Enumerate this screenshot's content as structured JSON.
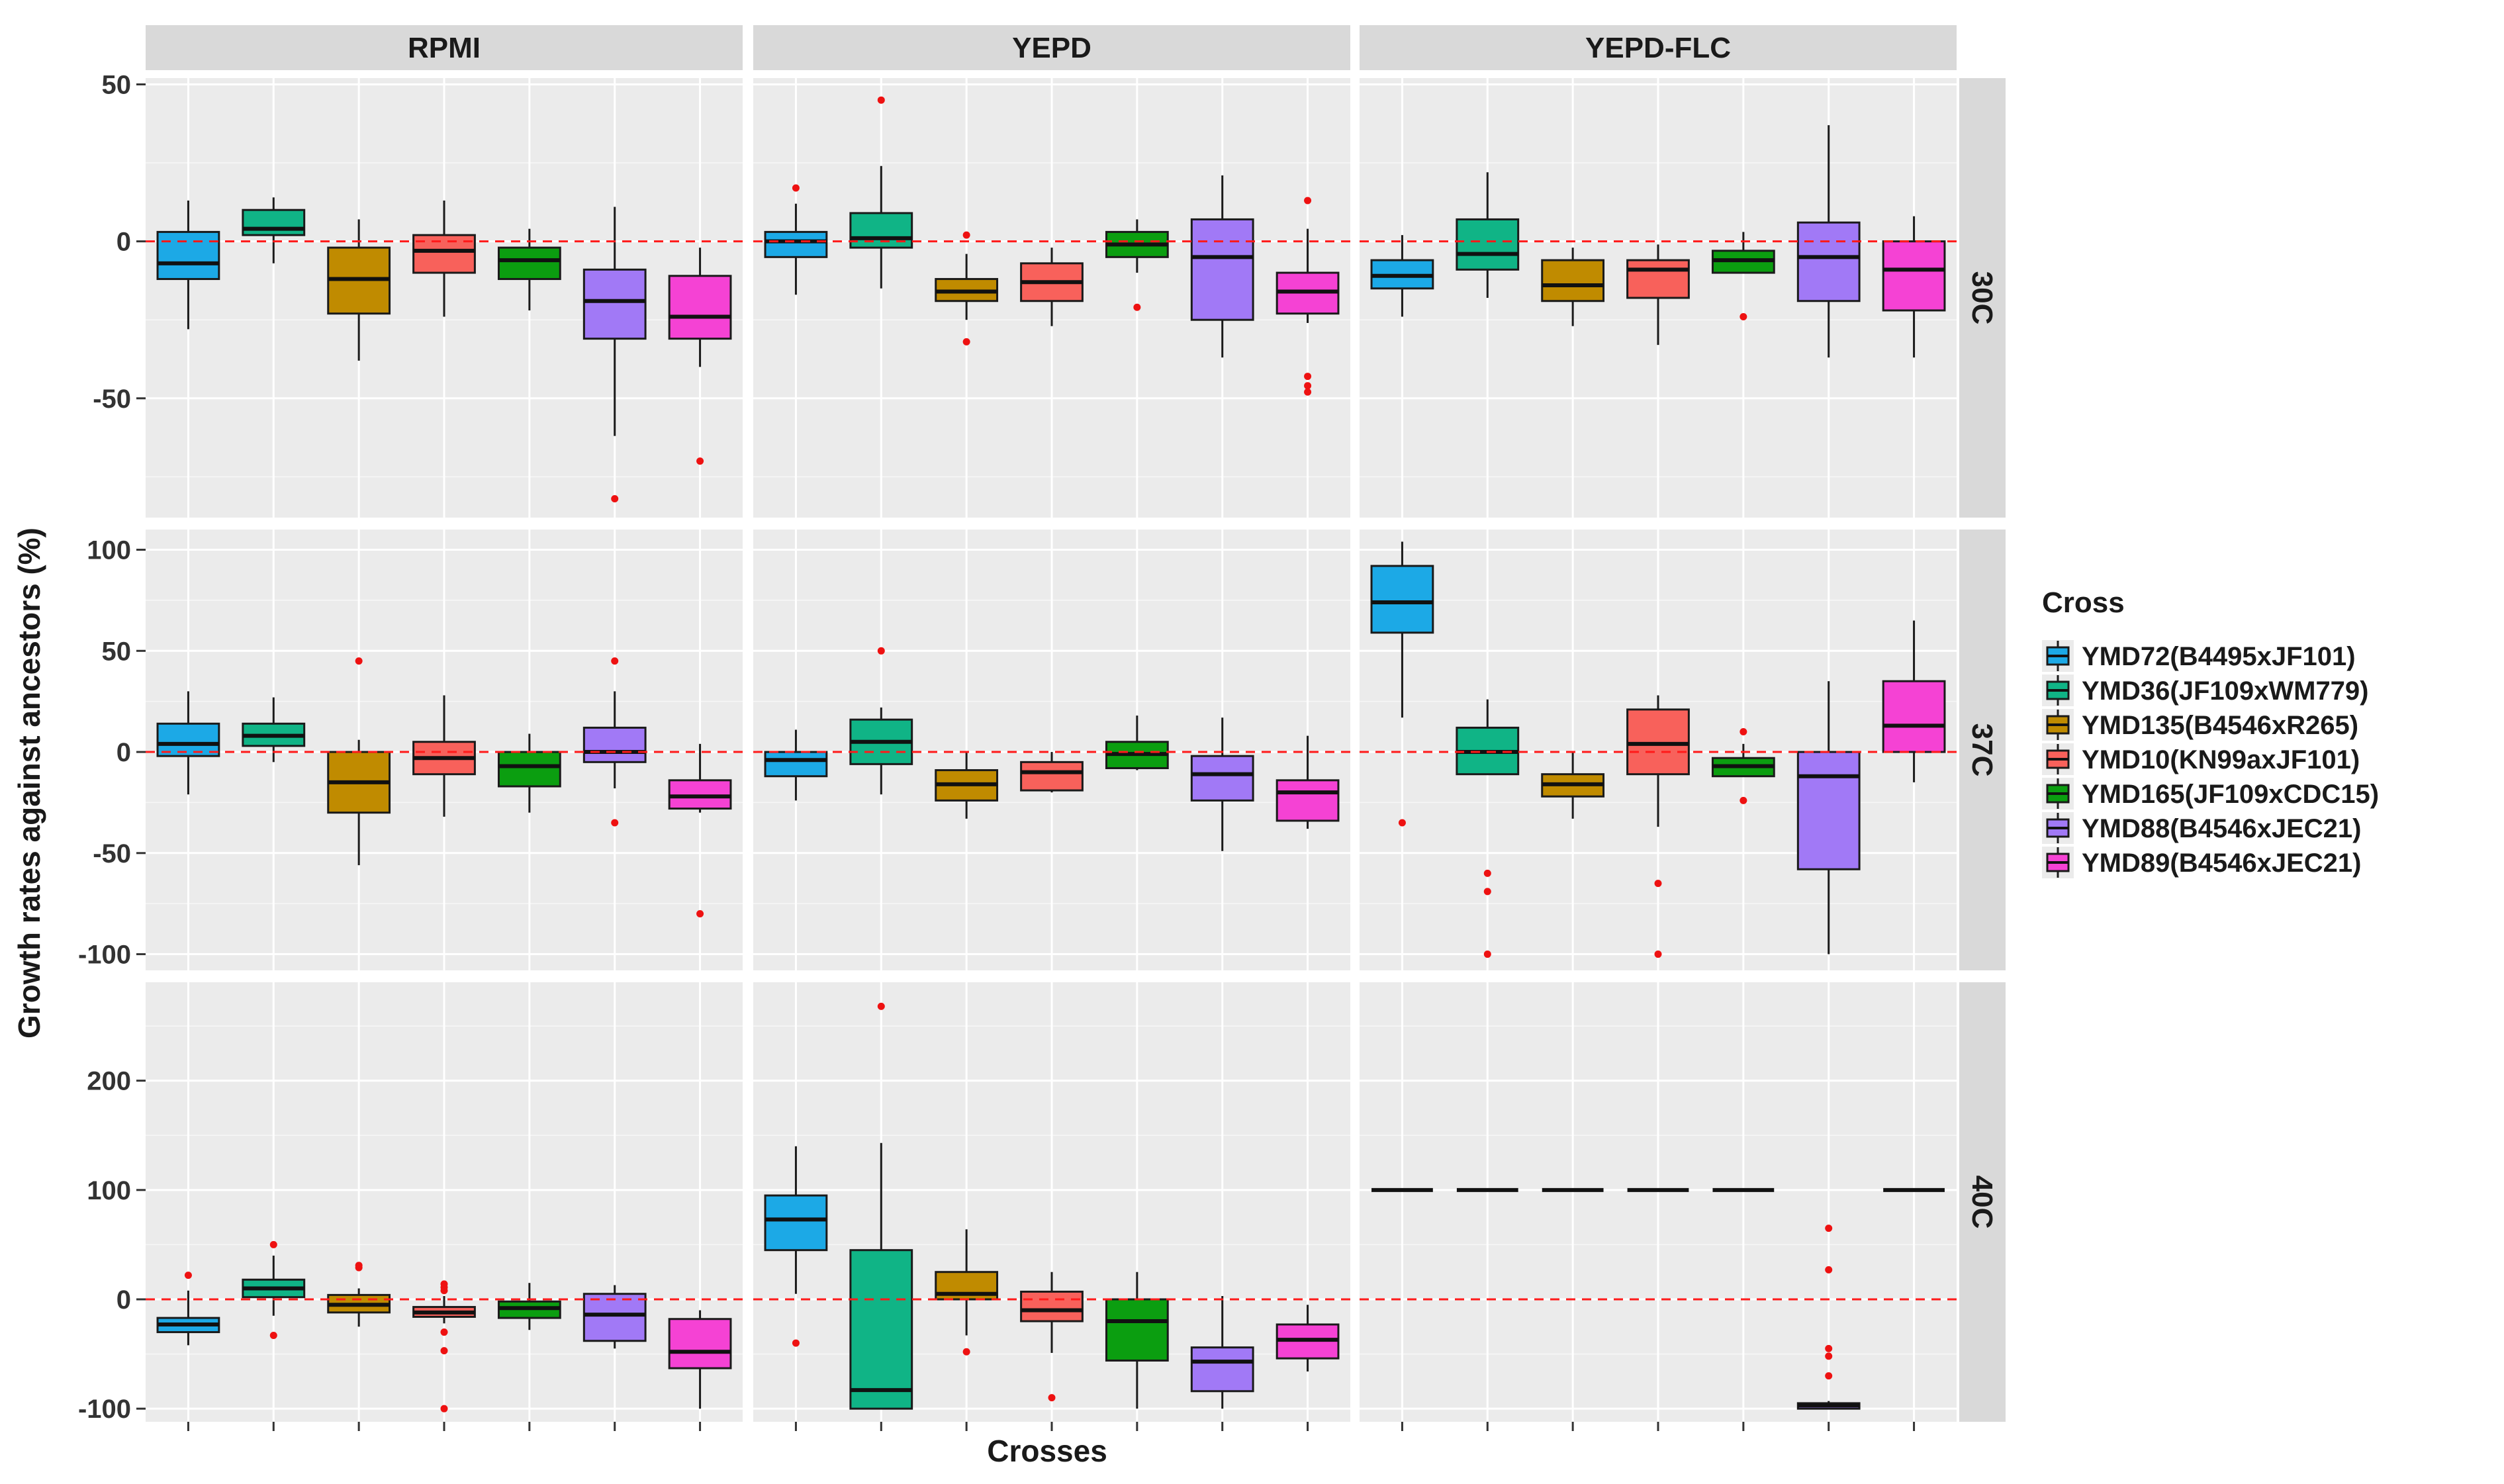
{
  "chart_data": {
    "type": "boxplot",
    "xlabel": "Crosses",
    "ylabel": "Growth rates against ancestors (%)",
    "columns": [
      "RPMI",
      "YEPD",
      "YEPD-FLC"
    ],
    "rows": [
      "30C",
      "37C",
      "40C"
    ],
    "reference_line": 0,
    "legend": {
      "title": "Cross",
      "position": "right",
      "entries": [
        {
          "label": "YMD72(B4495xJF101)",
          "color": "#1ca9e6"
        },
        {
          "label": "YMD36(JF109xWM779)",
          "color": "#10b486"
        },
        {
          "label": "YMD135(B4546xR265)",
          "color": "#c08b00"
        },
        {
          "label": "YMD10(KN99axJF101)",
          "color": "#f8615b"
        },
        {
          "label": "YMD165(JF109xCDC15)",
          "color": "#0b9e10"
        },
        {
          "label": "YMD88(B4546xJEC21)",
          "color": "#a179f6"
        },
        {
          "label": "YMD89(B4546xJEC21)",
          "color": "#f542d4"
        }
      ]
    },
    "row_axes": [
      {
        "row": "30C",
        "ylim": [
          -88,
          52
        ],
        "ticks": [
          50,
          0,
          -50
        ],
        "tick_labels": [
          "50",
          "0",
          "-50"
        ]
      },
      {
        "row": "37C",
        "ylim": [
          -108,
          110
        ],
        "ticks": [
          100,
          50,
          0,
          -50,
          -100
        ],
        "tick_labels": [
          "100",
          "50",
          "0",
          "-50",
          "-100"
        ]
      },
      {
        "row": "40C",
        "ylim": [
          -112,
          290
        ],
        "ticks": [
          200,
          100,
          0,
          -100
        ],
        "tick_labels": [
          "200",
          "100",
          "0",
          "-100"
        ]
      }
    ],
    "panels": [
      {
        "row": "30C",
        "col": "RPMI",
        "boxes": [
          [
            -28,
            -12,
            -7,
            3,
            13,
            []
          ],
          [
            -7,
            2,
            4,
            10,
            14,
            []
          ],
          [
            -38,
            -23,
            -12,
            -2,
            7,
            []
          ],
          [
            -24,
            -10,
            -3,
            2,
            13,
            []
          ],
          [
            -22,
            -12,
            -6,
            -2,
            4,
            []
          ],
          [
            -62,
            -31,
            -19,
            -9,
            11,
            [
              -82
            ]
          ],
          [
            -40,
            -31,
            -24,
            -11,
            -2,
            [
              -70
            ]
          ]
        ]
      },
      {
        "row": "30C",
        "col": "YEPD",
        "boxes": [
          [
            -17,
            -5,
            0,
            3,
            12,
            [
              17
            ]
          ],
          [
            -15,
            -2,
            1,
            9,
            24,
            [
              45
            ]
          ],
          [
            -25,
            -19,
            -16,
            -12,
            -4,
            [
              2,
              -32
            ]
          ],
          [
            -27,
            -19,
            -13,
            -7,
            -2,
            []
          ],
          [
            -10,
            -5,
            -1,
            3,
            7,
            [
              -21
            ]
          ],
          [
            -37,
            -25,
            -5,
            7,
            21,
            []
          ],
          [
            -26,
            -23,
            -16,
            -10,
            4,
            [
              13,
              -43,
              -46,
              -48
            ]
          ]
        ]
      },
      {
        "row": "30C",
        "col": "YEPD-FLC",
        "boxes": [
          [
            -24,
            -15,
            -11,
            -6,
            2,
            []
          ],
          [
            -18,
            -9,
            -4,
            7,
            22,
            []
          ],
          [
            -27,
            -19,
            -14,
            -6,
            -2,
            []
          ],
          [
            -33,
            -18,
            -9,
            -6,
            -1,
            []
          ],
          [
            -10,
            -10,
            -6,
            -3,
            3,
            [
              -24
            ]
          ],
          [
            -37,
            -19,
            -5,
            6,
            37,
            []
          ],
          [
            -37,
            -22,
            -9,
            0,
            8,
            []
          ]
        ]
      },
      {
        "row": "37C",
        "col": "RPMI",
        "boxes": [
          [
            -21,
            -2,
            4,
            14,
            30,
            []
          ],
          [
            -5,
            3,
            8,
            14,
            27,
            []
          ],
          [
            -56,
            -30,
            -15,
            0,
            6,
            [
              45
            ]
          ],
          [
            -32,
            -11,
            -3,
            5,
            28,
            []
          ],
          [
            -30,
            -17,
            -7,
            0,
            9,
            []
          ],
          [
            -18,
            -5,
            0,
            12,
            30,
            [
              45,
              -35
            ]
          ],
          [
            -30,
            -28,
            -22,
            -14,
            4,
            [
              -80
            ]
          ]
        ]
      },
      {
        "row": "37C",
        "col": "YEPD",
        "boxes": [
          [
            -24,
            -12,
            -4,
            0,
            11,
            []
          ],
          [
            -21,
            -6,
            5,
            16,
            22,
            [
              50
            ]
          ],
          [
            -33,
            -24,
            -16,
            -9,
            0,
            []
          ],
          [
            -20,
            -19,
            -10,
            -5,
            0,
            []
          ],
          [
            -9,
            -8,
            -1,
            5,
            18,
            []
          ],
          [
            -49,
            -24,
            -11,
            -2,
            17,
            []
          ],
          [
            -38,
            -34,
            -20,
            -14,
            8,
            []
          ]
        ]
      },
      {
        "row": "37C",
        "col": "YEPD-FLC",
        "boxes": [
          [
            17,
            59,
            74,
            92,
            104,
            [
              -35
            ]
          ],
          [
            -11,
            -11,
            0,
            12,
            26,
            [
              -60,
              -69,
              -100
            ]
          ],
          [
            -33,
            -22,
            -16,
            -11,
            0,
            []
          ],
          [
            -37,
            -11,
            4,
            21,
            28,
            [
              -65,
              -100
            ]
          ],
          [
            -12,
            -12,
            -7,
            -3,
            4,
            [
              10,
              -24
            ]
          ],
          [
            -100,
            -58,
            -12,
            0,
            35,
            []
          ],
          [
            -15,
            0,
            13,
            35,
            65,
            []
          ]
        ]
      },
      {
        "row": "40C",
        "col": "RPMI",
        "boxes": [
          [
            -42,
            -30,
            -23,
            -17,
            8,
            [
              22
            ]
          ],
          [
            -15,
            2,
            10,
            18,
            40,
            [
              50,
              -33
            ]
          ],
          [
            -25,
            -12,
            -5,
            4,
            10,
            [
              29,
              31
            ]
          ],
          [
            -22,
            -16,
            -12,
            -7,
            3,
            [
              14,
              11,
              8,
              -30,
              -47,
              -100
            ]
          ],
          [
            -28,
            -17,
            -8,
            -2,
            15,
            []
          ],
          [
            -45,
            -38,
            -14,
            5,
            13,
            []
          ],
          [
            -100,
            -63,
            -48,
            -18,
            -10,
            []
          ]
        ]
      },
      {
        "row": "40C",
        "col": "YEPD",
        "boxes": [
          [
            5,
            45,
            73,
            95,
            140,
            [
              -40
            ]
          ],
          [
            -100,
            -100,
            -83,
            45,
            143,
            [
              268
            ]
          ],
          [
            -33,
            0,
            5,
            25,
            64,
            [
              -48
            ]
          ],
          [
            -49,
            -20,
            -10,
            7,
            25,
            [
              -90
            ]
          ],
          [
            -100,
            -56,
            -20,
            0,
            25,
            []
          ],
          [
            -100,
            -84,
            -57,
            -44,
            3,
            []
          ],
          [
            -66,
            -54,
            -37,
            -23,
            -5,
            []
          ]
        ]
      },
      {
        "row": "40C",
        "col": "YEPD-FLC",
        "boxes": [
          [
            100,
            100,
            100,
            100,
            100,
            []
          ],
          [
            100,
            100,
            100,
            100,
            100,
            []
          ],
          [
            100,
            100,
            100,
            100,
            100,
            []
          ],
          [
            100,
            100,
            100,
            100,
            100,
            []
          ],
          [
            100,
            100,
            100,
            100,
            100,
            []
          ],
          [
            -100,
            -100,
            -97,
            -95,
            -93,
            [
              65,
              27,
              -45,
              -52,
              -70
            ]
          ],
          [
            100,
            100,
            100,
            100,
            100,
            []
          ]
        ]
      }
    ]
  }
}
